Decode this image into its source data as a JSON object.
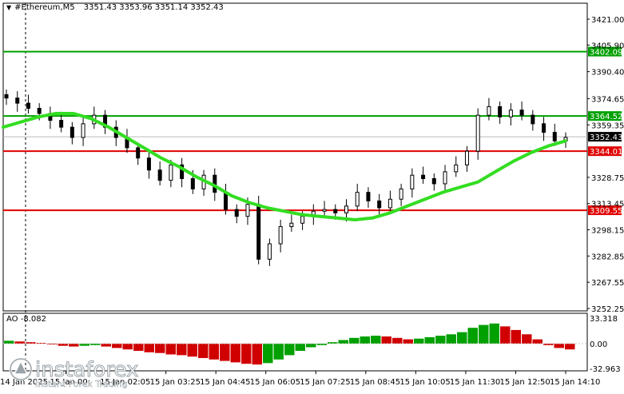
{
  "header": {
    "symbol": "#Ethereum,M5",
    "open": "3351.43",
    "high": "3353.96",
    "low": "3351.14",
    "close": "3352.43"
  },
  "indicator": {
    "name": "AO",
    "value": "-8.082",
    "scale_max": "33.318",
    "scale_zero": "0.00",
    "scale_min": "-32.963"
  },
  "price_axis": {
    "ticks": [
      "3421.00",
      "3405.90",
      "3390.40",
      "3374.65",
      "3359.35",
      "3328.75",
      "3313.45",
      "3298.15",
      "3282.85",
      "3267.55",
      "3252.25"
    ]
  },
  "levels": [
    {
      "label": "3402.09",
      "color": "#00a000",
      "price": 3402.09
    },
    {
      "label": "3364.52",
      "color": "#00a000",
      "price": 3364.52
    },
    {
      "label": "3344.01",
      "color": "#e00000",
      "price": 3344.01
    },
    {
      "label": "3309.55",
      "color": "#e00000",
      "price": 3309.55
    }
  ],
  "current_price": {
    "label": "3352.43",
    "price": 3352.43
  },
  "time_axis": {
    "labels": [
      "14 Jan 2025",
      "15 Jan 00:",
      "15 Jan 02:05",
      "15 Jan 03:25",
      "15 Jan 04:45",
      "15 Jan 06:05",
      "15 Jan 07:25",
      "15 Jan 08:45",
      "15 Jan 10:05",
      "15 Jan 11:30",
      "15 Jan 12:50",
      "15 Jan 14:10"
    ]
  },
  "logo": {
    "brand": "instaforex",
    "tagline": "Instant Forex Trading"
  },
  "colors": {
    "ma": "#33dd22",
    "ao_up": "#00a000",
    "ao_down": "#d00000",
    "candle": "#000000"
  },
  "chart_data": {
    "type": "candlestick",
    "price_range": [
      3252.25,
      3421.0
    ],
    "moving_average": [
      3358,
      3361,
      3364,
      3366,
      3366,
      3363,
      3358,
      3352,
      3346,
      3340,
      3335,
      3329,
      3324,
      3318,
      3314,
      3311,
      3309,
      3307,
      3306,
      3305,
      3304,
      3305,
      3308,
      3312,
      3316,
      3320,
      3323,
      3326,
      3332,
      3338,
      3343,
      3347,
      3350
    ],
    "candles_close": [
      3375,
      3372,
      3369,
      3366,
      3362,
      3358,
      3352,
      3360,
      3365,
      3358,
      3352,
      3346,
      3340,
      3333,
      3327,
      3336,
      3328,
      3322,
      3330,
      3320,
      3310,
      3306,
      3313,
      3281,
      3290,
      3300,
      3302,
      3306,
      3309,
      3310,
      3308,
      3312,
      3320,
      3315,
      3311,
      3316,
      3322,
      3330,
      3328,
      3325,
      3332,
      3336,
      3344,
      3365,
      3370,
      3364,
      3368,
      3365,
      3360,
      3355,
      3350,
      3352
    ],
    "ao_bars": [
      4,
      3,
      2,
      1,
      -1,
      -3,
      -4,
      -3,
      -2,
      -4,
      -6,
      -8,
      -10,
      -12,
      -13,
      -15,
      -16,
      -18,
      -20,
      -22,
      -24,
      -26,
      -28,
      -29,
      -27,
      -22,
      -16,
      -10,
      -5,
      -2,
      2,
      5,
      8,
      10,
      11,
      10,
      8,
      6,
      7,
      9,
      11,
      13,
      16,
      22,
      26,
      28,
      24,
      19,
      13,
      6,
      -2,
      -6,
      -8
    ]
  }
}
